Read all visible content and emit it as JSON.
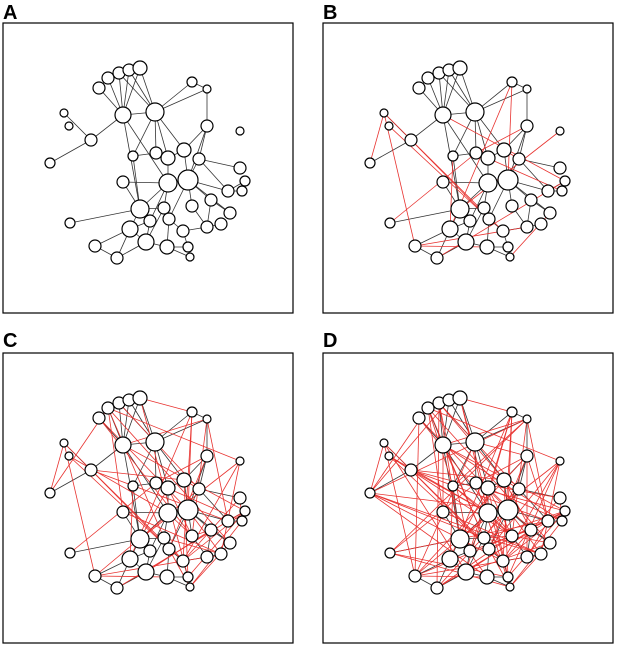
{
  "panels": [
    {
      "label": "A",
      "extra_edges": 0
    },
    {
      "label": "B",
      "extra_edges": 18
    },
    {
      "label": "C",
      "extra_edges": 55
    },
    {
      "label": "D",
      "extra_edges": 110
    }
  ],
  "colors": {
    "base_edge": "#333333",
    "added_edge": "#e8322f",
    "node_fill": "#ffffff",
    "node_stroke": "#000000",
    "frame": "#000000"
  }
}
